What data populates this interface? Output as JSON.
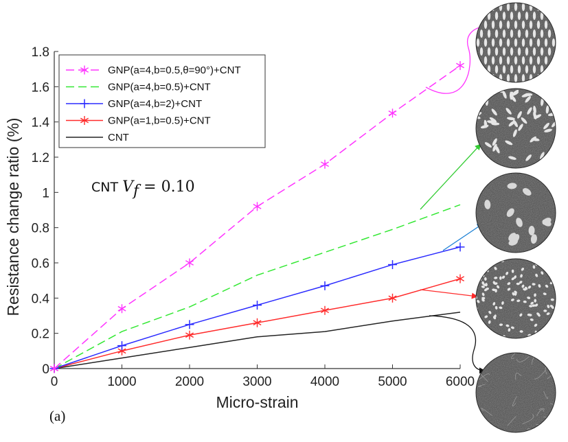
{
  "chart_data": {
    "type": "line",
    "xlabel": "Micro-strain",
    "ylabel": "Resistance change ratio (%)",
    "xlim": [
      0,
      6000
    ],
    "ylim": [
      0,
      1.8
    ],
    "xticks": [
      0,
      1000,
      2000,
      3000,
      4000,
      5000,
      6000
    ],
    "yticks": [
      0,
      0.2,
      0.4,
      0.6,
      0.8,
      1,
      1.2,
      1.4,
      1.6,
      1.8
    ],
    "x": [
      0,
      1000,
      2000,
      3000,
      4000,
      5000,
      6000
    ],
    "grid": false,
    "legend_position": "top-left",
    "series": [
      {
        "name": "GNP(a=4,b=0.5,θ=90°)+CNT",
        "values": [
          0,
          0.34,
          0.6,
          0.92,
          1.16,
          1.45,
          1.72
        ],
        "color": "#ff33ff",
        "dash": "dashed",
        "marker": "asterisk"
      },
      {
        "name": "GNP(a=4,b=0.5)+CNT",
        "values": [
          0,
          0.21,
          0.35,
          0.53,
          0.66,
          0.79,
          0.93
        ],
        "color": "#33e833",
        "dash": "dashed",
        "marker": "none"
      },
      {
        "name": "GNP(a=4,b=2)+CNT",
        "values": [
          0,
          0.13,
          0.25,
          0.36,
          0.47,
          0.59,
          0.69
        ],
        "color": "#2b2bff",
        "dash": "solid",
        "marker": "plus"
      },
      {
        "name": "GNP(a=1,b=0.5)+CNT",
        "values": [
          0,
          0.1,
          0.19,
          0.26,
          0.33,
          0.4,
          0.51
        ],
        "color": "#ff2a2a",
        "dash": "solid",
        "marker": "asterisk"
      },
      {
        "name": "CNT",
        "values": [
          0,
          0.06,
          0.12,
          0.18,
          0.21,
          0.27,
          0.32
        ],
        "color": "#222222",
        "dash": "solid",
        "marker": "none"
      }
    ],
    "annotation": {
      "prefix": "CNT ",
      "math": "V",
      "subscript": "f",
      "suffix": " = 0.10"
    },
    "panel_label": "(a)",
    "insets": [
      {
        "depicts": "aligned-elongated-platelets",
        "arrow_color": "#ff33ff"
      },
      {
        "depicts": "randomly-oriented-elongated-platelets",
        "arrow_color": "#33cc33"
      },
      {
        "depicts": "large-round-platelets",
        "arrow_color": "#1a7fd4"
      },
      {
        "depicts": "small-round-platelets",
        "arrow_color": "#ff2a2a"
      },
      {
        "depicts": "nanotube-network",
        "arrow_color": "#111111"
      }
    ]
  }
}
